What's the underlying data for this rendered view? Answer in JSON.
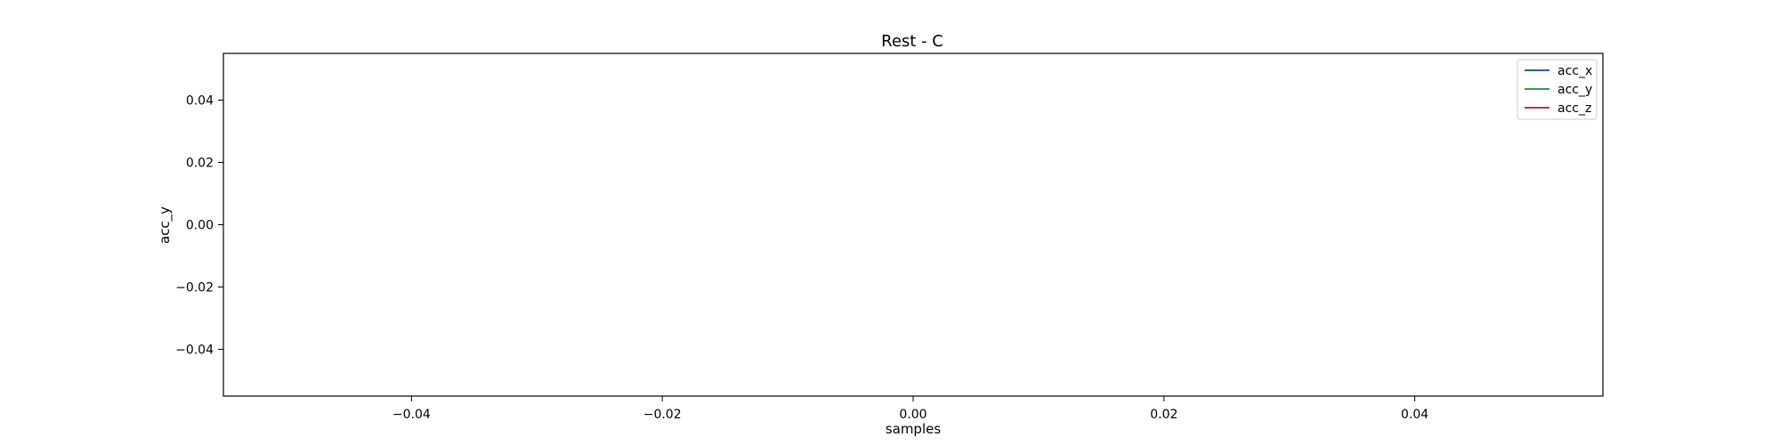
{
  "chart_data": {
    "type": "line",
    "title": "Rest - C",
    "xlabel": "samples",
    "ylabel": "acc_y",
    "xlim": [
      -0.055,
      0.055
    ],
    "ylim": [
      -0.055,
      0.055
    ],
    "xticks": [
      -0.04,
      -0.02,
      0.0,
      0.02,
      0.04
    ],
    "yticks": [
      -0.04,
      -0.02,
      0.0,
      0.02,
      0.04
    ],
    "xtick_labels": [
      "−0.04",
      "−0.02",
      "0.00",
      "0.02",
      "0.04"
    ],
    "ytick_labels": [
      "−0.04",
      "−0.02",
      "0.00",
      "0.02",
      "0.04"
    ],
    "grid": false,
    "legend": "top-right",
    "series": [
      {
        "name": "acc_x",
        "color": "#2f5ca8",
        "x": [],
        "y": []
      },
      {
        "name": "acc_y",
        "color": "#3a9b52",
        "x": [],
        "y": []
      },
      {
        "name": "acc_z",
        "color": "#c0392b",
        "x": [],
        "y": []
      }
    ]
  }
}
